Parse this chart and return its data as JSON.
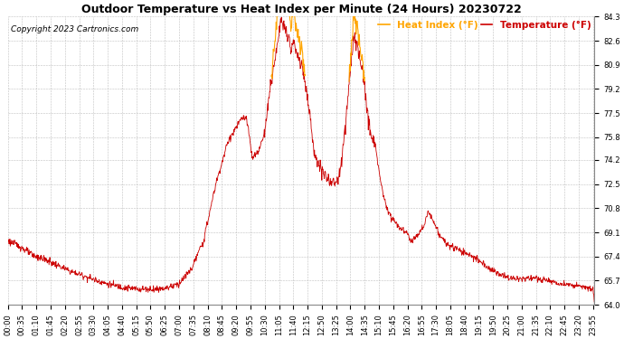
{
  "title": "Outdoor Temperature vs Heat Index per Minute (24 Hours) 20230722",
  "copyright": "Copyright 2023 Cartronics.com",
  "legend_heat_index": "Heat Index (°F)",
  "legend_temperature": "Temperature (°F)",
  "heat_index_color": "#FFA500",
  "temperature_color": "#CC0000",
  "background_color": "#ffffff",
  "grid_color": "#c0c0c0",
  "ylim": [
    64.0,
    84.3
  ],
  "yticks": [
    64.0,
    65.7,
    67.4,
    69.1,
    70.8,
    72.5,
    74.2,
    75.8,
    77.5,
    79.2,
    80.9,
    82.6,
    84.3
  ],
  "title_fontsize": 9,
  "copyright_fontsize": 6.5,
  "legend_fontsize": 7.5,
  "tick_fontsize": 6.0,
  "figsize": [
    6.9,
    3.75
  ],
  "dpi": 100
}
